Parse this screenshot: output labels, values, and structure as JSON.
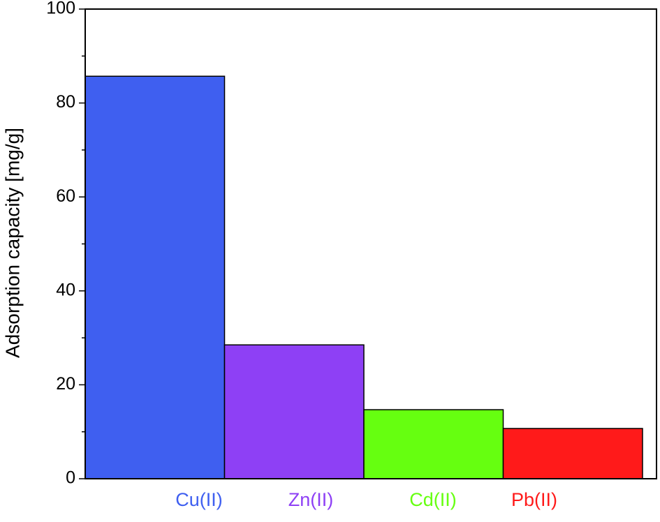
{
  "chart_data": {
    "type": "bar",
    "y_label": "Adsorption capacity [mg/g]",
    "categories": [
      "Cu(II)",
      "Zn(II)",
      "Cd(II)",
      "Pb(II)"
    ],
    "values": [
      85.7,
      28.5,
      14.7,
      10.7
    ],
    "colors": [
      "#3f5ff0",
      "#8e40f5",
      "#66ff10",
      "#ff1a1a"
    ],
    "ylim": [
      0,
      100
    ],
    "yticks": [
      0,
      20,
      40,
      60,
      80,
      100
    ]
  }
}
